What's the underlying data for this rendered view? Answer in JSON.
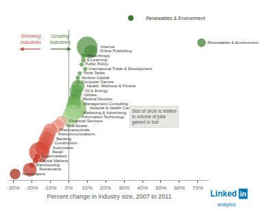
{
  "chart_data": {
    "type": "scatter",
    "xlabel": "Percent change in industry size, 2007 to 2011",
    "x": [
      72,
      10,
      12,
      8,
      8,
      7,
      9,
      6,
      5,
      5,
      5,
      4,
      4,
      3,
      3,
      4,
      2,
      1,
      -4,
      -6,
      -10,
      -11,
      -12,
      -13,
      -14,
      -16,
      -17,
      -18,
      -20,
      -21,
      -29
    ],
    "values": [
      34,
      32.9,
      31.8,
      30.7,
      29.6,
      28.5,
      27.4,
      26.3,
      25.2,
      24.1,
      23,
      21.9,
      20.8,
      19.7,
      18.6,
      17.5,
      16.4,
      15.3,
      14.2,
      13.1,
      12,
      10.9,
      9.8,
      8.7,
      7.6,
      6.5,
      5.4,
      4.3,
      3.2,
      2.1,
      1
    ],
    "sizes": [
      55,
      320,
      130,
      18,
      16,
      13,
      13,
      13,
      14,
      14,
      130,
      120,
      90,
      110,
      140,
      320,
      200,
      220,
      100,
      120,
      140,
      145,
      160,
      150,
      160,
      300,
      22,
      22,
      20,
      140,
      85
    ],
    "colors": [
      "#3a7a2a",
      "#4a8c3a",
      "#4a8c3a",
      "#4a8c3a",
      "#4a8c3a",
      "#4a8c3a",
      "#4a8c3a",
      "#4a8c3a",
      "#4a8c3a",
      "#4a8c3a",
      "#5a9e47",
      "#5a9e47",
      "#5a9e47",
      "#5a9e47",
      "#5a9e47",
      "#7ab860",
      "#9ecf86",
      "#a8d692",
      "#e8a598",
      "#e8907e",
      "#e07060",
      "#e07060",
      "#d85545",
      "#d85545",
      "#d85545",
      "#d04030",
      "#c03020",
      "#c03020",
      "#c03020",
      "#c03020",
      "#a02010"
    ],
    "point_labels": [
      "Renewables & Environment",
      "Internet",
      "Online Publishing",
      "Philanthropy",
      "E-Learning",
      "Public Policy",
      "International Trade & Development",
      "Think Tanks",
      "Venture Capital",
      "Computer Games",
      "Health, Wellness & Fitness",
      "Oil & Energy",
      "Utilities",
      "Medical Devices",
      "Management Consulting",
      "Hospital & Health Care",
      "Marketing & Advertising",
      "Information Technology",
      "Financial Services",
      "Real Estate",
      "Pharmaceuticals",
      "Telecommunications",
      "Banking",
      "Construction",
      "Automotive",
      "Retail",
      "Supermarkets",
      "Capital Markets",
      "Warehousing",
      "Restaurants",
      "Newspapers"
    ],
    "xlim": [
      -32,
      76
    ],
    "xticks": [
      {
        "value": -30,
        "label": "-30%"
      },
      {
        "value": -20,
        "label": "-20%"
      },
      {
        "value": -10,
        "label": "-10%"
      },
      {
        "value": 0,
        "label": "0%"
      },
      {
        "value": 10,
        "label": "10%"
      },
      {
        "value": 20,
        "label": "20%"
      },
      {
        "value": 30,
        "label": "30%"
      },
      {
        "value": 40,
        "label": "40%"
      },
      {
        "value": 50,
        "label": "50%"
      },
      {
        "value": 60,
        "label": "60%"
      },
      {
        "value": 70,
        "label": "70%"
      }
    ],
    "ylim": [
      -0.5,
      37.3
    ],
    "tick_labels": "x",
    "grid": false,
    "legend": "top right",
    "legend_entry": {
      "text": " Renewables & Environment",
      "color": "#3a7a2a"
    },
    "annotations": [
      {
        "text": "Shrinking\nindustries",
        "color": "#c0504d"
      },
      {
        "text": "Growing\nindustries",
        "color": "#4f7942"
      },
      {
        "text": "Size of circle is related\nto volume of jobs\ngained or lost",
        "color": "#555555"
      },
      {
        "text": "Linked",
        "color": "#0077b5"
      },
      {
        "text": "in",
        "color": "#0077b5"
      },
      {
        "text": "analytics",
        "color": "#0077b5"
      }
    ]
  }
}
